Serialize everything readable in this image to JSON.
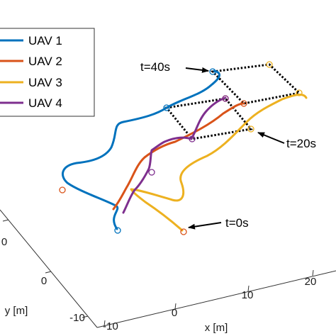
{
  "chart_data": {
    "type": "line",
    "dimensions": "3d",
    "xlabel": "x [m]",
    "ylabel": "y [m]",
    "x_ticks": [
      "-10",
      "0",
      "10",
      "20"
    ],
    "y_ticks": [
      "-10",
      "0",
      "0"
    ],
    "grid": false,
    "legend_position": "top-left",
    "series": [
      {
        "name": "UAV 1",
        "color": "#0072BD"
      },
      {
        "name": "UAV 2",
        "color": "#D95319"
      },
      {
        "name": "UAV 3",
        "color": "#EDB120"
      },
      {
        "name": "UAV 4",
        "color": "#7E2F8E"
      }
    ],
    "annotations": [
      {
        "text": "t=40s"
      },
      {
        "text": "t=20s"
      },
      {
        "text": "t=0s"
      }
    ]
  }
}
